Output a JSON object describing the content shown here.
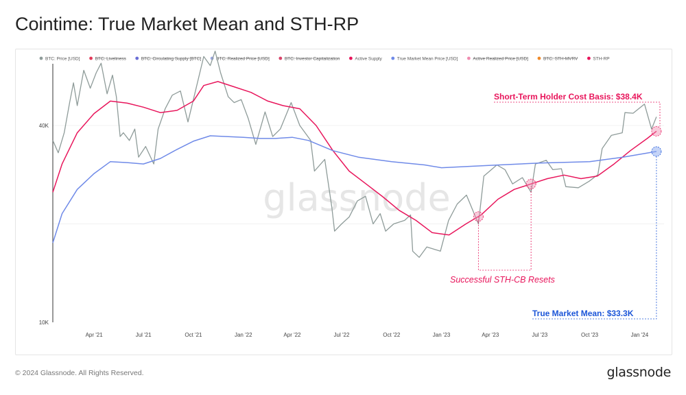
{
  "page": {
    "title": "Cointime: True Market Mean and STH-RP",
    "copyright": "© 2024 Glassnode. All Rights Reserved.",
    "brand": "glassnode",
    "watermark": "glassnode"
  },
  "colors": {
    "price": "#8e9b99",
    "sth": "#e8155b",
    "tmm": "#6f8ae8",
    "sth_annotation": "#e8155b",
    "tmm_annotation": "#1b55d8"
  },
  "chart_data": {
    "type": "line",
    "yscale": "log",
    "ylim": [
      10000,
      60000
    ],
    "xlim": [
      "2021-01-15",
      "2024-02-15"
    ],
    "y_ticks": [
      {
        "value": 10000,
        "label": "10K"
      },
      {
        "value": 40000,
        "label": "40K"
      }
    ],
    "x_ticks": [
      {
        "date": "2021-04-01",
        "label": "Apr '21"
      },
      {
        "date": "2021-07-01",
        "label": "Jul '21"
      },
      {
        "date": "2021-10-01",
        "label": "Oct '21"
      },
      {
        "date": "2022-01-01",
        "label": "Jan '22"
      },
      {
        "date": "2022-04-01",
        "label": "Apr '22"
      },
      {
        "date": "2022-07-01",
        "label": "Jul '22"
      },
      {
        "date": "2022-10-01",
        "label": "Oct '22"
      },
      {
        "date": "2023-01-01",
        "label": "Jan '23"
      },
      {
        "date": "2023-04-01",
        "label": "Apr '23"
      },
      {
        "date": "2023-07-01",
        "label": "Jul '23"
      },
      {
        "date": "2023-10-01",
        "label": "Oct '23"
      },
      {
        "date": "2024-01-01",
        "label": "Jan '24"
      }
    ],
    "legend": [
      {
        "label": "BTC: Price [USD]",
        "color": "#8e9b99",
        "active": true
      },
      {
        "label": "BTC: Liveliness",
        "color": "#e23a5a",
        "active": false
      },
      {
        "label": "BTC: Circulating Supply [BTC]",
        "color": "#6b6fd6",
        "active": false
      },
      {
        "label": "BTC: Realized Price [USD]",
        "color": "#9aa6e0",
        "active": false
      },
      {
        "label": "BTC: Investor Capitalization",
        "color": "#d8446a",
        "active": false
      },
      {
        "label": "Active Supply",
        "color": "#e8155b",
        "active": true
      },
      {
        "label": "True Market Mean Price [USD]",
        "color": "#6f8ae8",
        "active": true
      },
      {
        "label": "Active Realized Price [USD]",
        "color": "#f08cb0",
        "active": false
      },
      {
        "label": "BTC: STH-MVRV",
        "color": "#f08a2a",
        "active": false
      },
      {
        "label": "STH-RP",
        "color": "#e8155b",
        "active": true
      }
    ],
    "series": [
      {
        "name": "BTC: Price [USD]",
        "color": "#8e9b99",
        "points": [
          [
            "2021-01-15",
            36000
          ],
          [
            "2021-01-25",
            33000
          ],
          [
            "2021-02-05",
            38000
          ],
          [
            "2021-02-15",
            47000
          ],
          [
            "2021-02-22",
            54000
          ],
          [
            "2021-03-01",
            46000
          ],
          [
            "2021-03-13",
            59000
          ],
          [
            "2021-03-25",
            52000
          ],
          [
            "2021-04-05",
            58000
          ],
          [
            "2021-04-14",
            62000
          ],
          [
            "2021-04-25",
            50000
          ],
          [
            "2021-05-05",
            57000
          ],
          [
            "2021-05-12",
            49000
          ],
          [
            "2021-05-19",
            37000
          ],
          [
            "2021-05-25",
            38000
          ],
          [
            "2021-06-05",
            36000
          ],
          [
            "2021-06-15",
            39000
          ],
          [
            "2021-06-22",
            32000
          ],
          [
            "2021-07-05",
            34500
          ],
          [
            "2021-07-20",
            30500
          ],
          [
            "2021-07-28",
            39000
          ],
          [
            "2021-08-10",
            45000
          ],
          [
            "2021-08-23",
            49500
          ],
          [
            "2021-09-07",
            51000
          ],
          [
            "2021-09-21",
            41000
          ],
          [
            "2021-10-01",
            48000
          ],
          [
            "2021-10-15",
            60000
          ],
          [
            "2021-10-20",
            65000
          ],
          [
            "2021-11-01",
            61000
          ],
          [
            "2021-11-10",
            67500
          ],
          [
            "2021-11-20",
            58000
          ],
          [
            "2021-12-04",
            49000
          ],
          [
            "2021-12-15",
            47000
          ],
          [
            "2021-12-28",
            48000
          ],
          [
            "2022-01-10",
            42000
          ],
          [
            "2022-01-24",
            35000
          ],
          [
            "2022-02-10",
            44000
          ],
          [
            "2022-02-24",
            37000
          ],
          [
            "2022-03-10",
            39000
          ],
          [
            "2022-03-30",
            47000
          ],
          [
            "2022-04-15",
            40000
          ],
          [
            "2022-05-05",
            36000
          ],
          [
            "2022-05-12",
            29000
          ],
          [
            "2022-05-31",
            31500
          ],
          [
            "2022-06-13",
            22500
          ],
          [
            "2022-06-18",
            19000
          ],
          [
            "2022-07-01",
            20000
          ],
          [
            "2022-07-15",
            21000
          ],
          [
            "2022-07-30",
            23500
          ],
          [
            "2022-08-14",
            24300
          ],
          [
            "2022-08-28",
            20000
          ],
          [
            "2022-09-10",
            21500
          ],
          [
            "2022-09-20",
            19000
          ],
          [
            "2022-10-05",
            20000
          ],
          [
            "2022-10-25",
            20500
          ],
          [
            "2022-11-05",
            21300
          ],
          [
            "2022-11-09",
            16500
          ],
          [
            "2022-11-21",
            15800
          ],
          [
            "2022-12-05",
            17000
          ],
          [
            "2022-12-30",
            16500
          ],
          [
            "2023-01-14",
            20500
          ],
          [
            "2023-01-30",
            23000
          ],
          [
            "2023-02-16",
            24500
          ],
          [
            "2023-03-10",
            20000
          ],
          [
            "2023-03-20",
            28000
          ],
          [
            "2023-04-13",
            30300
          ],
          [
            "2023-04-28",
            29300
          ],
          [
            "2023-05-12",
            26500
          ],
          [
            "2023-05-30",
            27700
          ],
          [
            "2023-06-15",
            25000
          ],
          [
            "2023-06-23",
            30500
          ],
          [
            "2023-07-13",
            31300
          ],
          [
            "2023-07-25",
            29300
          ],
          [
            "2023-08-10",
            29500
          ],
          [
            "2023-08-18",
            26000
          ],
          [
            "2023-09-10",
            25800
          ],
          [
            "2023-09-30",
            27000
          ],
          [
            "2023-10-16",
            28300
          ],
          [
            "2023-10-24",
            34000
          ],
          [
            "2023-11-10",
            37300
          ],
          [
            "2023-11-30",
            38000
          ],
          [
            "2023-12-05",
            43800
          ],
          [
            "2023-12-20",
            43600
          ],
          [
            "2024-01-10",
            46500
          ],
          [
            "2024-01-23",
            39000
          ],
          [
            "2024-02-01",
            42500
          ]
        ]
      },
      {
        "name": "STH-RP",
        "color": "#e8155b",
        "points": [
          [
            "2021-01-15",
            25000
          ],
          [
            "2021-02-01",
            30500
          ],
          [
            "2021-03-01",
            38000
          ],
          [
            "2021-04-01",
            43500
          ],
          [
            "2021-05-01",
            47500
          ],
          [
            "2021-06-01",
            46800
          ],
          [
            "2021-07-01",
            45500
          ],
          [
            "2021-08-01",
            43800
          ],
          [
            "2021-09-01",
            44500
          ],
          [
            "2021-10-01",
            47500
          ],
          [
            "2021-10-20",
            53000
          ],
          [
            "2021-11-15",
            54500
          ],
          [
            "2021-12-15",
            52500
          ],
          [
            "2022-01-15",
            50500
          ],
          [
            "2022-02-15",
            47500
          ],
          [
            "2022-03-15",
            46000
          ],
          [
            "2022-04-15",
            45000
          ],
          [
            "2022-05-15",
            40000
          ],
          [
            "2022-06-15",
            33500
          ],
          [
            "2022-07-15",
            29000
          ],
          [
            "2022-08-15",
            26500
          ],
          [
            "2022-09-15",
            24200
          ],
          [
            "2022-10-15",
            22000
          ],
          [
            "2022-11-15",
            20500
          ],
          [
            "2022-12-15",
            18800
          ],
          [
            "2023-01-15",
            18500
          ],
          [
            "2023-02-15",
            20000
          ],
          [
            "2023-03-15",
            21300
          ],
          [
            "2023-04-15",
            23800
          ],
          [
            "2023-05-15",
            25500
          ],
          [
            "2023-06-15",
            26500
          ],
          [
            "2023-07-15",
            27500
          ],
          [
            "2023-08-15",
            28200
          ],
          [
            "2023-09-15",
            27500
          ],
          [
            "2023-10-15",
            28000
          ],
          [
            "2023-11-15",
            30500
          ],
          [
            "2023-12-15",
            33500
          ],
          [
            "2024-01-15",
            36500
          ],
          [
            "2024-02-01",
            38400
          ]
        ]
      },
      {
        "name": "True Market Mean Price [USD]",
        "color": "#6f8ae8",
        "points": [
          [
            "2021-01-15",
            17500
          ],
          [
            "2021-02-01",
            21500
          ],
          [
            "2021-03-01",
            25500
          ],
          [
            "2021-04-01",
            28500
          ],
          [
            "2021-05-01",
            31000
          ],
          [
            "2021-06-01",
            30800
          ],
          [
            "2021-07-01",
            30500
          ],
          [
            "2021-08-01",
            31700
          ],
          [
            "2021-09-01",
            33800
          ],
          [
            "2021-10-01",
            35800
          ],
          [
            "2021-11-01",
            37200
          ],
          [
            "2021-12-01",
            37000
          ],
          [
            "2022-01-01",
            36800
          ],
          [
            "2022-02-01",
            36500
          ],
          [
            "2022-03-01",
            36500
          ],
          [
            "2022-04-01",
            36800
          ],
          [
            "2022-05-01",
            36000
          ],
          [
            "2022-06-15",
            33500
          ],
          [
            "2022-08-01",
            32000
          ],
          [
            "2022-10-01",
            31000
          ],
          [
            "2022-12-01",
            30300
          ],
          [
            "2023-01-01",
            29700
          ],
          [
            "2023-04-01",
            30200
          ],
          [
            "2023-07-01",
            30700
          ],
          [
            "2023-10-01",
            31000
          ],
          [
            "2023-12-01",
            32000
          ],
          [
            "2024-02-01",
            33300
          ]
        ]
      }
    ],
    "annotations": [
      {
        "text": "Short-Term Holder Cost Basis: $38.4K",
        "color": "#e8155b"
      },
      {
        "text": "Successful STH-CB Resets",
        "color": "#e8155b"
      },
      {
        "text": "True Market Mean: $33.3K",
        "color": "#1b55d8"
      }
    ],
    "marker_dates": [
      "2023-03-10",
      "2023-06-15"
    ]
  }
}
